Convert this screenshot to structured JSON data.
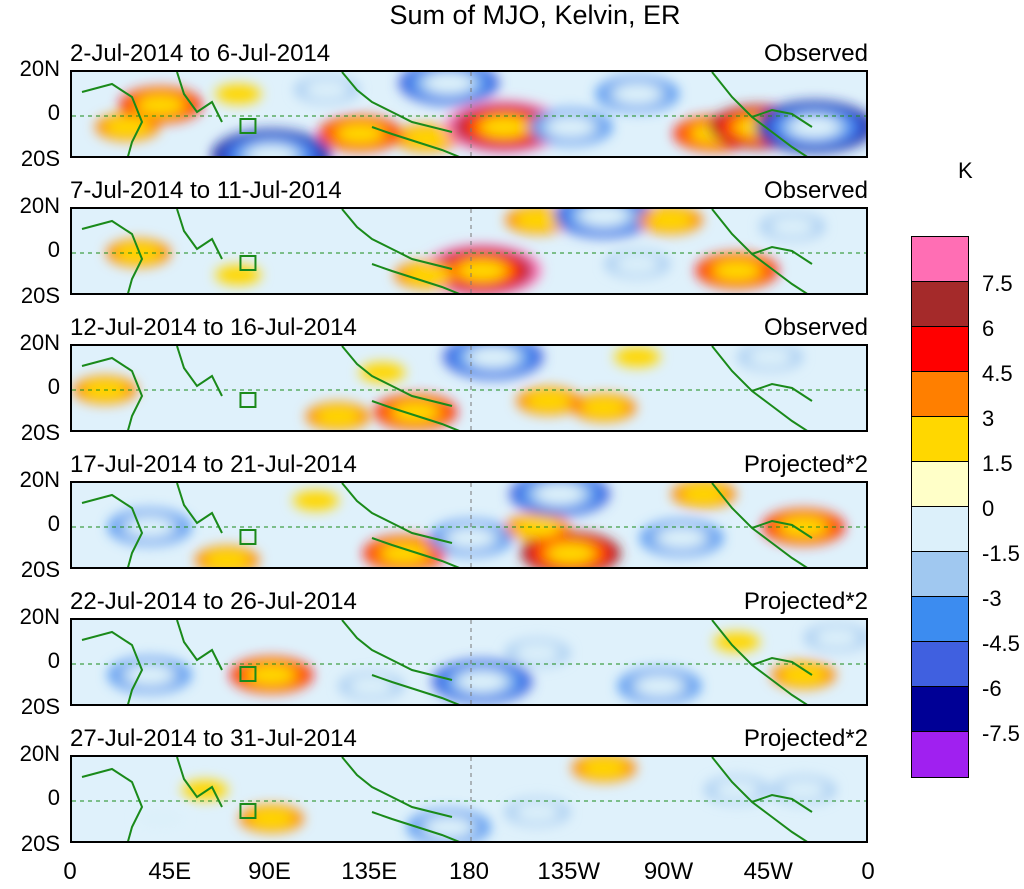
{
  "chart_data": {
    "type": "heatmap",
    "title": "Sum of MJO, Kelvin, ER",
    "y_ticks": [
      "20N",
      "0",
      "20S"
    ],
    "x_ticks": [
      "0",
      "45E",
      "90E",
      "135E",
      "180",
      "135W",
      "90W",
      "45W",
      "0"
    ],
    "x_range": [
      0,
      360
    ],
    "y_range": [
      -20,
      20
    ],
    "colorbar": {
      "unit": "K",
      "levels": [
        "7.5",
        "6",
        "4.5",
        "3",
        "1.5",
        "0",
        "-1.5",
        "-3",
        "-4.5",
        "-6",
        "-7.5"
      ],
      "colors": [
        "#ff6eb4",
        "#a52a2a",
        "#ff0000",
        "#ff7f00",
        "#ffd700",
        "#ffffc8",
        "#dcf0fa",
        "#a0c8f0",
        "#3c8cf0",
        "#4060e0",
        "#000096",
        "#a020f0"
      ]
    },
    "panels": [
      {
        "label": "2-Jul-2014 to 6-Jul-2014",
        "type": "Observed",
        "blobs": [
          {
            "lon": 40,
            "lat": 5,
            "v": 4.5
          },
          {
            "lon": 25,
            "lat": -5,
            "v": 3
          },
          {
            "lon": 90,
            "lat": -18,
            "v": -7.5
          },
          {
            "lon": 130,
            "lat": -8,
            "v": 4.5
          },
          {
            "lon": 160,
            "lat": -10,
            "v": 3
          },
          {
            "lon": 195,
            "lat": -5,
            "v": 7.5
          },
          {
            "lon": 225,
            "lat": -5,
            "v": -4.5
          },
          {
            "lon": 255,
            "lat": 10,
            "v": -4.5
          },
          {
            "lon": 290,
            "lat": -8,
            "v": 4.5
          },
          {
            "lon": 310,
            "lat": -5,
            "v": 6
          },
          {
            "lon": 335,
            "lat": -5,
            "v": -7.5
          },
          {
            "lon": 170,
            "lat": 15,
            "v": -6
          },
          {
            "lon": 115,
            "lat": 12,
            "v": -3
          },
          {
            "lon": 75,
            "lat": 10,
            "v": 1.5
          }
        ]
      },
      {
        "label": "7-Jul-2014 to 11-Jul-2014",
        "type": "Observed",
        "blobs": [
          {
            "lon": 185,
            "lat": -8,
            "v": 7.5
          },
          {
            "lon": 210,
            "lat": 15,
            "v": 3
          },
          {
            "lon": 240,
            "lat": 17,
            "v": -6
          },
          {
            "lon": 270,
            "lat": 15,
            "v": 3
          },
          {
            "lon": 300,
            "lat": -8,
            "v": 4.5
          },
          {
            "lon": 255,
            "lat": -5,
            "v": -3
          },
          {
            "lon": 30,
            "lat": 0,
            "v": 3
          },
          {
            "lon": 75,
            "lat": -10,
            "v": 1.5
          },
          {
            "lon": 160,
            "lat": -10,
            "v": 3
          },
          {
            "lon": 325,
            "lat": 12,
            "v": -3
          }
        ]
      },
      {
        "label": "12-Jul-2014 to 16-Jul-2014",
        "type": "Observed",
        "blobs": [
          {
            "lon": 15,
            "lat": 0,
            "v": 3
          },
          {
            "lon": 155,
            "lat": -10,
            "v": 4.5
          },
          {
            "lon": 190,
            "lat": 15,
            "v": -6
          },
          {
            "lon": 240,
            "lat": -8,
            "v": 3
          },
          {
            "lon": 215,
            "lat": -5,
            "v": 3
          },
          {
            "lon": 255,
            "lat": 15,
            "v": 1.5
          },
          {
            "lon": 315,
            "lat": 15,
            "v": -3
          },
          {
            "lon": 140,
            "lat": 8,
            "v": 1.5
          },
          {
            "lon": 120,
            "lat": -12,
            "v": 3
          }
        ]
      },
      {
        "label": "17-Jul-2014 to 21-Jul-2014",
        "type": "Projected*2",
        "blobs": [
          {
            "lon": 35,
            "lat": 0,
            "v": -4.5
          },
          {
            "lon": 70,
            "lat": -15,
            "v": 3
          },
          {
            "lon": 150,
            "lat": -12,
            "v": 4.5
          },
          {
            "lon": 180,
            "lat": -5,
            "v": -4.5
          },
          {
            "lon": 225,
            "lat": -12,
            "v": 6
          },
          {
            "lon": 210,
            "lat": 0,
            "v": 3
          },
          {
            "lon": 275,
            "lat": -5,
            "v": -4.5
          },
          {
            "lon": 330,
            "lat": 0,
            "v": 4.5
          },
          {
            "lon": 285,
            "lat": 15,
            "v": 3
          },
          {
            "lon": 110,
            "lat": 12,
            "v": 1.5
          },
          {
            "lon": 220,
            "lat": 15,
            "v": -6
          }
        ]
      },
      {
        "label": "22-Jul-2014 to 26-Jul-2014",
        "type": "Projected*2",
        "blobs": [
          {
            "lon": 35,
            "lat": -5,
            "v": -4.5
          },
          {
            "lon": 90,
            "lat": -5,
            "v": 4.5
          },
          {
            "lon": 135,
            "lat": -10,
            "v": -3
          },
          {
            "lon": 185,
            "lat": -8,
            "v": -6
          },
          {
            "lon": 210,
            "lat": 5,
            "v": -3
          },
          {
            "lon": 265,
            "lat": -10,
            "v": -4.5
          },
          {
            "lon": 300,
            "lat": 10,
            "v": 1.5
          },
          {
            "lon": 330,
            "lat": -5,
            "v": 3
          },
          {
            "lon": 345,
            "lat": 12,
            "v": -3
          }
        ]
      },
      {
        "label": "27-Jul-2014 to 31-Jul-2014",
        "type": "Projected*2",
        "blobs": [
          {
            "lon": 90,
            "lat": -8,
            "v": 3
          },
          {
            "lon": 170,
            "lat": -12,
            "v": -4.5
          },
          {
            "lon": 210,
            "lat": -5,
            "v": -3
          },
          {
            "lon": 240,
            "lat": 15,
            "v": 3
          },
          {
            "lon": 300,
            "lat": 5,
            "v": -3
          },
          {
            "lon": 330,
            "lat": 5,
            "v": -3
          },
          {
            "lon": 60,
            "lat": 5,
            "v": 1.5
          },
          {
            "lon": 40,
            "lat": -8,
            "v": -1.5
          }
        ]
      }
    ]
  }
}
